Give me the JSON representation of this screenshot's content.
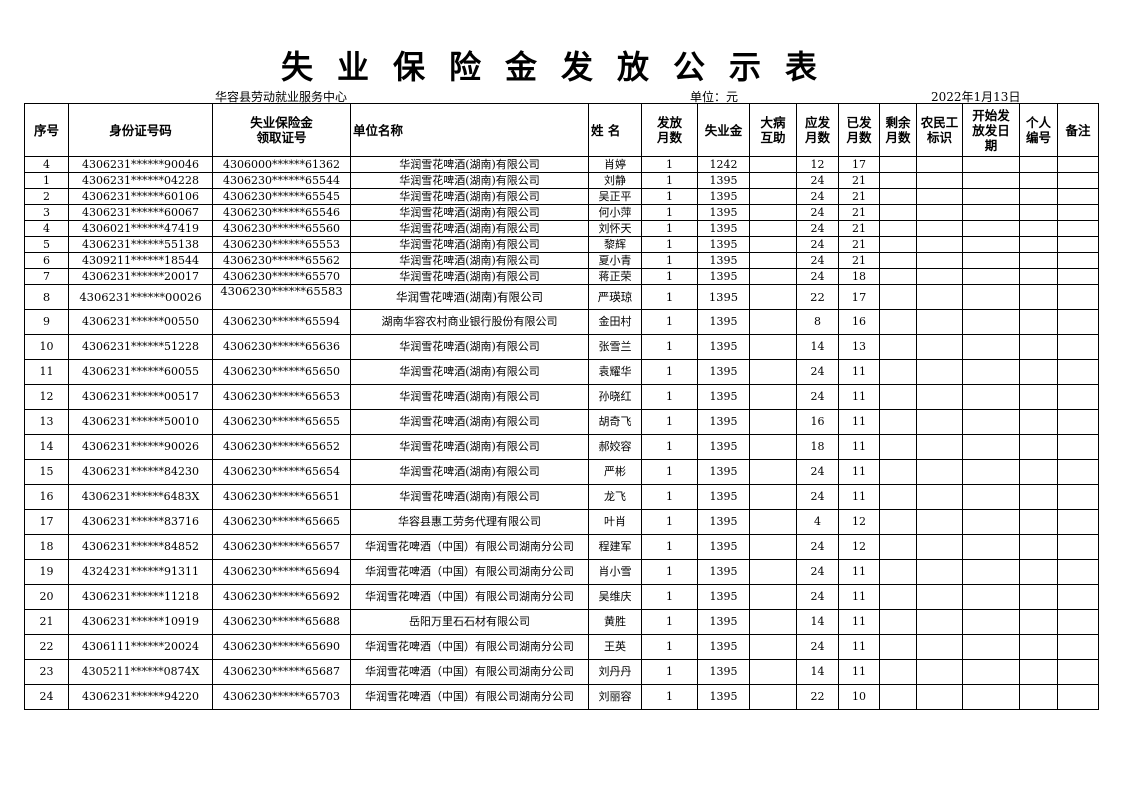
{
  "title": "失业保险金发放公示表",
  "org": "华容县劳动就业服务中心",
  "unit": "单位：元",
  "date": "2022年1月13日",
  "headers": [
    "序号",
    "身份证号码",
    "失业保险金\n领取证号",
    "单位名称",
    "姓 名",
    "发放\n月数",
    "失业金",
    "大病\n互助",
    "应发\n月数",
    "已发\n月数",
    "剩余\n月数",
    "农民工\n标识",
    "开始发\n放发日\n期",
    "个人\n编号",
    "备注"
  ],
  "rows": [
    {
      "no": "4",
      "id": "4306231******90046",
      "cert": "4306000******61362",
      "company": "华润雪花啤酒(湖南)有限公司",
      "name": "肖婷",
      "months": "1",
      "amount": "1242",
      "illness": "",
      "due": "12",
      "paid": "17"
    },
    {
      "no": "1",
      "id": "4306231******04228",
      "cert": "4306230******65544",
      "company": "华润雪花啤酒(湖南)有限公司",
      "name": "刘静",
      "months": "1",
      "amount": "1395",
      "illness": "",
      "due": "24",
      "paid": "21"
    },
    {
      "no": "2",
      "id": "4306231******60106",
      "cert": "4306230******65545",
      "company": "华润雪花啤酒(湖南)有限公司",
      "name": "吴正平",
      "months": "1",
      "amount": "1395",
      "illness": "",
      "due": "24",
      "paid": "21"
    },
    {
      "no": "3",
      "id": "4306231******60067",
      "cert": "4306230******65546",
      "company": "华润雪花啤酒(湖南)有限公司",
      "name": "何小萍",
      "months": "1",
      "amount": "1395",
      "illness": "",
      "due": "24",
      "paid": "21"
    },
    {
      "no": "4",
      "id": "4306021******47419",
      "cert": "4306230******65560",
      "company": "华润雪花啤酒(湖南)有限公司",
      "name": "刘怀天",
      "months": "1",
      "amount": "1395",
      "illness": "",
      "due": "24",
      "paid": "21"
    },
    {
      "no": "5",
      "id": "4306231******55138",
      "cert": "4306230******65553",
      "company": "华润雪花啤酒(湖南)有限公司",
      "name": "黎辉",
      "months": "1",
      "amount": "1395",
      "illness": "",
      "due": "24",
      "paid": "21"
    },
    {
      "no": "6",
      "id": "4309211******18544",
      "cert": "4306230******65562",
      "company": "华润雪花啤酒(湖南)有限公司",
      "name": "夏小青",
      "months": "1",
      "amount": "1395",
      "illness": "",
      "due": "24",
      "paid": "21"
    },
    {
      "no": "7",
      "id": "4306231******20017",
      "cert": "4306230******65570",
      "company": "华润雪花啤酒(湖南)有限公司",
      "name": "蒋正荣",
      "months": "1",
      "amount": "1395",
      "illness": "",
      "due": "24",
      "paid": "18"
    },
    {
      "no": "8",
      "id": "4306231******00026",
      "cert": "4306230******65583",
      "company": "华润雪花啤酒(湖南)有限公司",
      "name": "严瑛琼",
      "months": "1",
      "amount": "1395",
      "illness": "",
      "due": "22",
      "paid": "17"
    },
    {
      "no": "9",
      "id": "4306231******00550",
      "cert": "4306230******65594",
      "company": "湖南华容农村商业银行股份有限公司",
      "name": "金田村",
      "months": "1",
      "amount": "1395",
      "illness": "",
      "due": "8",
      "paid": "16"
    },
    {
      "no": "10",
      "id": "4306231******51228",
      "cert": "4306230******65636",
      "company": "华润雪花啤酒(湖南)有限公司",
      "name": "张雪兰",
      "months": "1",
      "amount": "1395",
      "illness": "",
      "due": "14",
      "paid": "13"
    },
    {
      "no": "11",
      "id": "4306231******60055",
      "cert": "4306230******65650",
      "company": "华润雪花啤酒(湖南)有限公司",
      "name": "袁耀华",
      "months": "1",
      "amount": "1395",
      "illness": "",
      "due": "24",
      "paid": "11"
    },
    {
      "no": "12",
      "id": "4306231******00517",
      "cert": "4306230******65653",
      "company": "华润雪花啤酒(湖南)有限公司",
      "name": "孙晓红",
      "months": "1",
      "amount": "1395",
      "illness": "",
      "due": "24",
      "paid": "11"
    },
    {
      "no": "13",
      "id": "4306231******50010",
      "cert": "4306230******65655",
      "company": "华润雪花啤酒(湖南)有限公司",
      "name": "胡奇飞",
      "months": "1",
      "amount": "1395",
      "illness": "",
      "due": "16",
      "paid": "11"
    },
    {
      "no": "14",
      "id": "4306231******90026",
      "cert": "4306230******65652",
      "company": "华润雪花啤酒(湖南)有限公司",
      "name": "郝姣容",
      "months": "1",
      "amount": "1395",
      "illness": "",
      "due": "18",
      "paid": "11"
    },
    {
      "no": "15",
      "id": "4306231******84230",
      "cert": "4306230******65654",
      "company": "华润雪花啤酒(湖南)有限公司",
      "name": "严彬",
      "months": "1",
      "amount": "1395",
      "illness": "",
      "due": "24",
      "paid": "11"
    },
    {
      "no": "16",
      "id": "4306231******6483X",
      "cert": "4306230******65651",
      "company": "华润雪花啤酒(湖南)有限公司",
      "name": "龙飞",
      "months": "1",
      "amount": "1395",
      "illness": "",
      "due": "24",
      "paid": "11"
    },
    {
      "no": "17",
      "id": "4306231******83716",
      "cert": "4306230******65665",
      "company": "华容县惠工劳务代理有限公司",
      "name": "叶肖",
      "months": "1",
      "amount": "1395",
      "illness": "",
      "due": "4",
      "paid": "12"
    },
    {
      "no": "18",
      "id": "4306231******84852",
      "cert": "4306230******65657",
      "company": "华润雪花啤酒（中国）有限公司湖南分公司",
      "name": "程建军",
      "months": "1",
      "amount": "1395",
      "illness": "",
      "due": "24",
      "paid": "12"
    },
    {
      "no": "19",
      "id": "4324231******91311",
      "cert": "4306230******65694",
      "company": "华润雪花啤酒（中国）有限公司湖南分公司",
      "name": "肖小雪",
      "months": "1",
      "amount": "1395",
      "illness": "",
      "due": "24",
      "paid": "11"
    },
    {
      "no": "20",
      "id": "4306231******11218",
      "cert": "4306230******65692",
      "company": "华润雪花啤酒（中国）有限公司湖南分公司",
      "name": "吴维庆",
      "months": "1",
      "amount": "1395",
      "illness": "",
      "due": "24",
      "paid": "11"
    },
    {
      "no": "21",
      "id": "4306231******10919",
      "cert": "4306230******65688",
      "company": "岳阳万里石石材有限公司",
      "name": "黄胜",
      "months": "1",
      "amount": "1395",
      "illness": "",
      "due": "14",
      "paid": "11"
    },
    {
      "no": "22",
      "id": "4306111******20024",
      "cert": "4306230******65690",
      "company": "华润雪花啤酒（中国）有限公司湖南分公司",
      "name": "王英",
      "months": "1",
      "amount": "1395",
      "illness": "",
      "due": "24",
      "paid": "11"
    },
    {
      "no": "23",
      "id": "4305211******0874X",
      "cert": "4306230******65687",
      "company": "华润雪花啤酒（中国）有限公司湖南分公司",
      "name": "刘丹丹",
      "months": "1",
      "amount": "1395",
      "illness": "",
      "due": "14",
      "paid": "11"
    },
    {
      "no": "24",
      "id": "4306231******94220",
      "cert": "4306230******65703",
      "company": "华润雪花啤酒（中国）有限公司湖南分公司",
      "name": "刘丽容",
      "months": "1",
      "amount": "1395",
      "illness": "",
      "due": "22",
      "paid": "10"
    }
  ]
}
